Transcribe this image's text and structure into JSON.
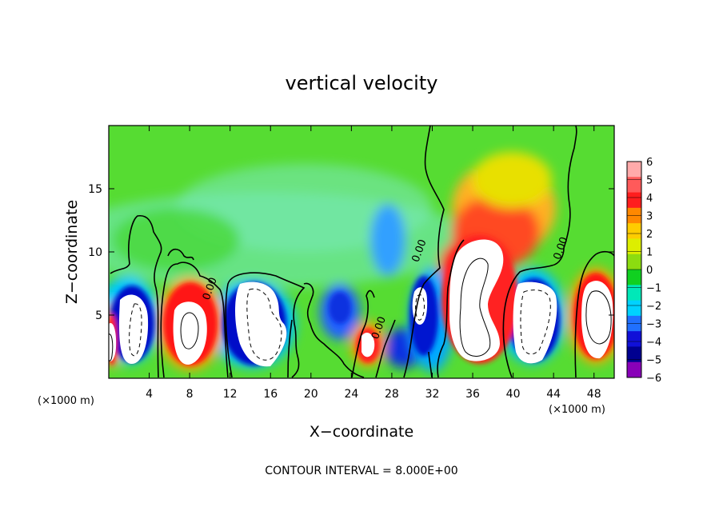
{
  "chart_data": {
    "type": "heatmap",
    "title": "vertical velocity",
    "xlabel": "X−coordinate",
    "ylabel": "Z−coordinate",
    "x_units": "(×1000 m)",
    "y_units": "(×1000 m)",
    "xlim": [
      0,
      50
    ],
    "ylim": [
      0,
      20
    ],
    "x_ticks": [
      4,
      8,
      12,
      16,
      20,
      24,
      28,
      32,
      36,
      40,
      44,
      48
    ],
    "y_ticks": [
      5,
      10,
      15
    ],
    "colorbar": {
      "min": -6,
      "max": 6,
      "ticks": [
        "6",
        "5",
        "4",
        "3",
        "2",
        "1",
        "0",
        "−1",
        "−2",
        "−3",
        "−4",
        "−5",
        "−6"
      ],
      "colors": [
        "#ffaaaa",
        "#ff5a5a",
        "#ff1e1e",
        "#ff8800",
        "#ffcc00",
        "#ddee00",
        "#8cdc10",
        "#10d020",
        "#00e8b8",
        "#00d2ff",
        "#2070ff",
        "#1010d8",
        "#000090",
        "#8800b8"
      ]
    },
    "contour_labels": [
      {
        "text": "0.00",
        "x": 10.3,
        "z": 7.0
      },
      {
        "text": "0.00",
        "x": 27.0,
        "z": 3.9
      },
      {
        "text": "0.00",
        "x": 31.0,
        "z": 10.0
      },
      {
        "text": "0.00",
        "x": 45.0,
        "z": 10.2
      }
    ],
    "contour_interval": "CONTOUR INTERVAL = 8.000E+00"
  }
}
